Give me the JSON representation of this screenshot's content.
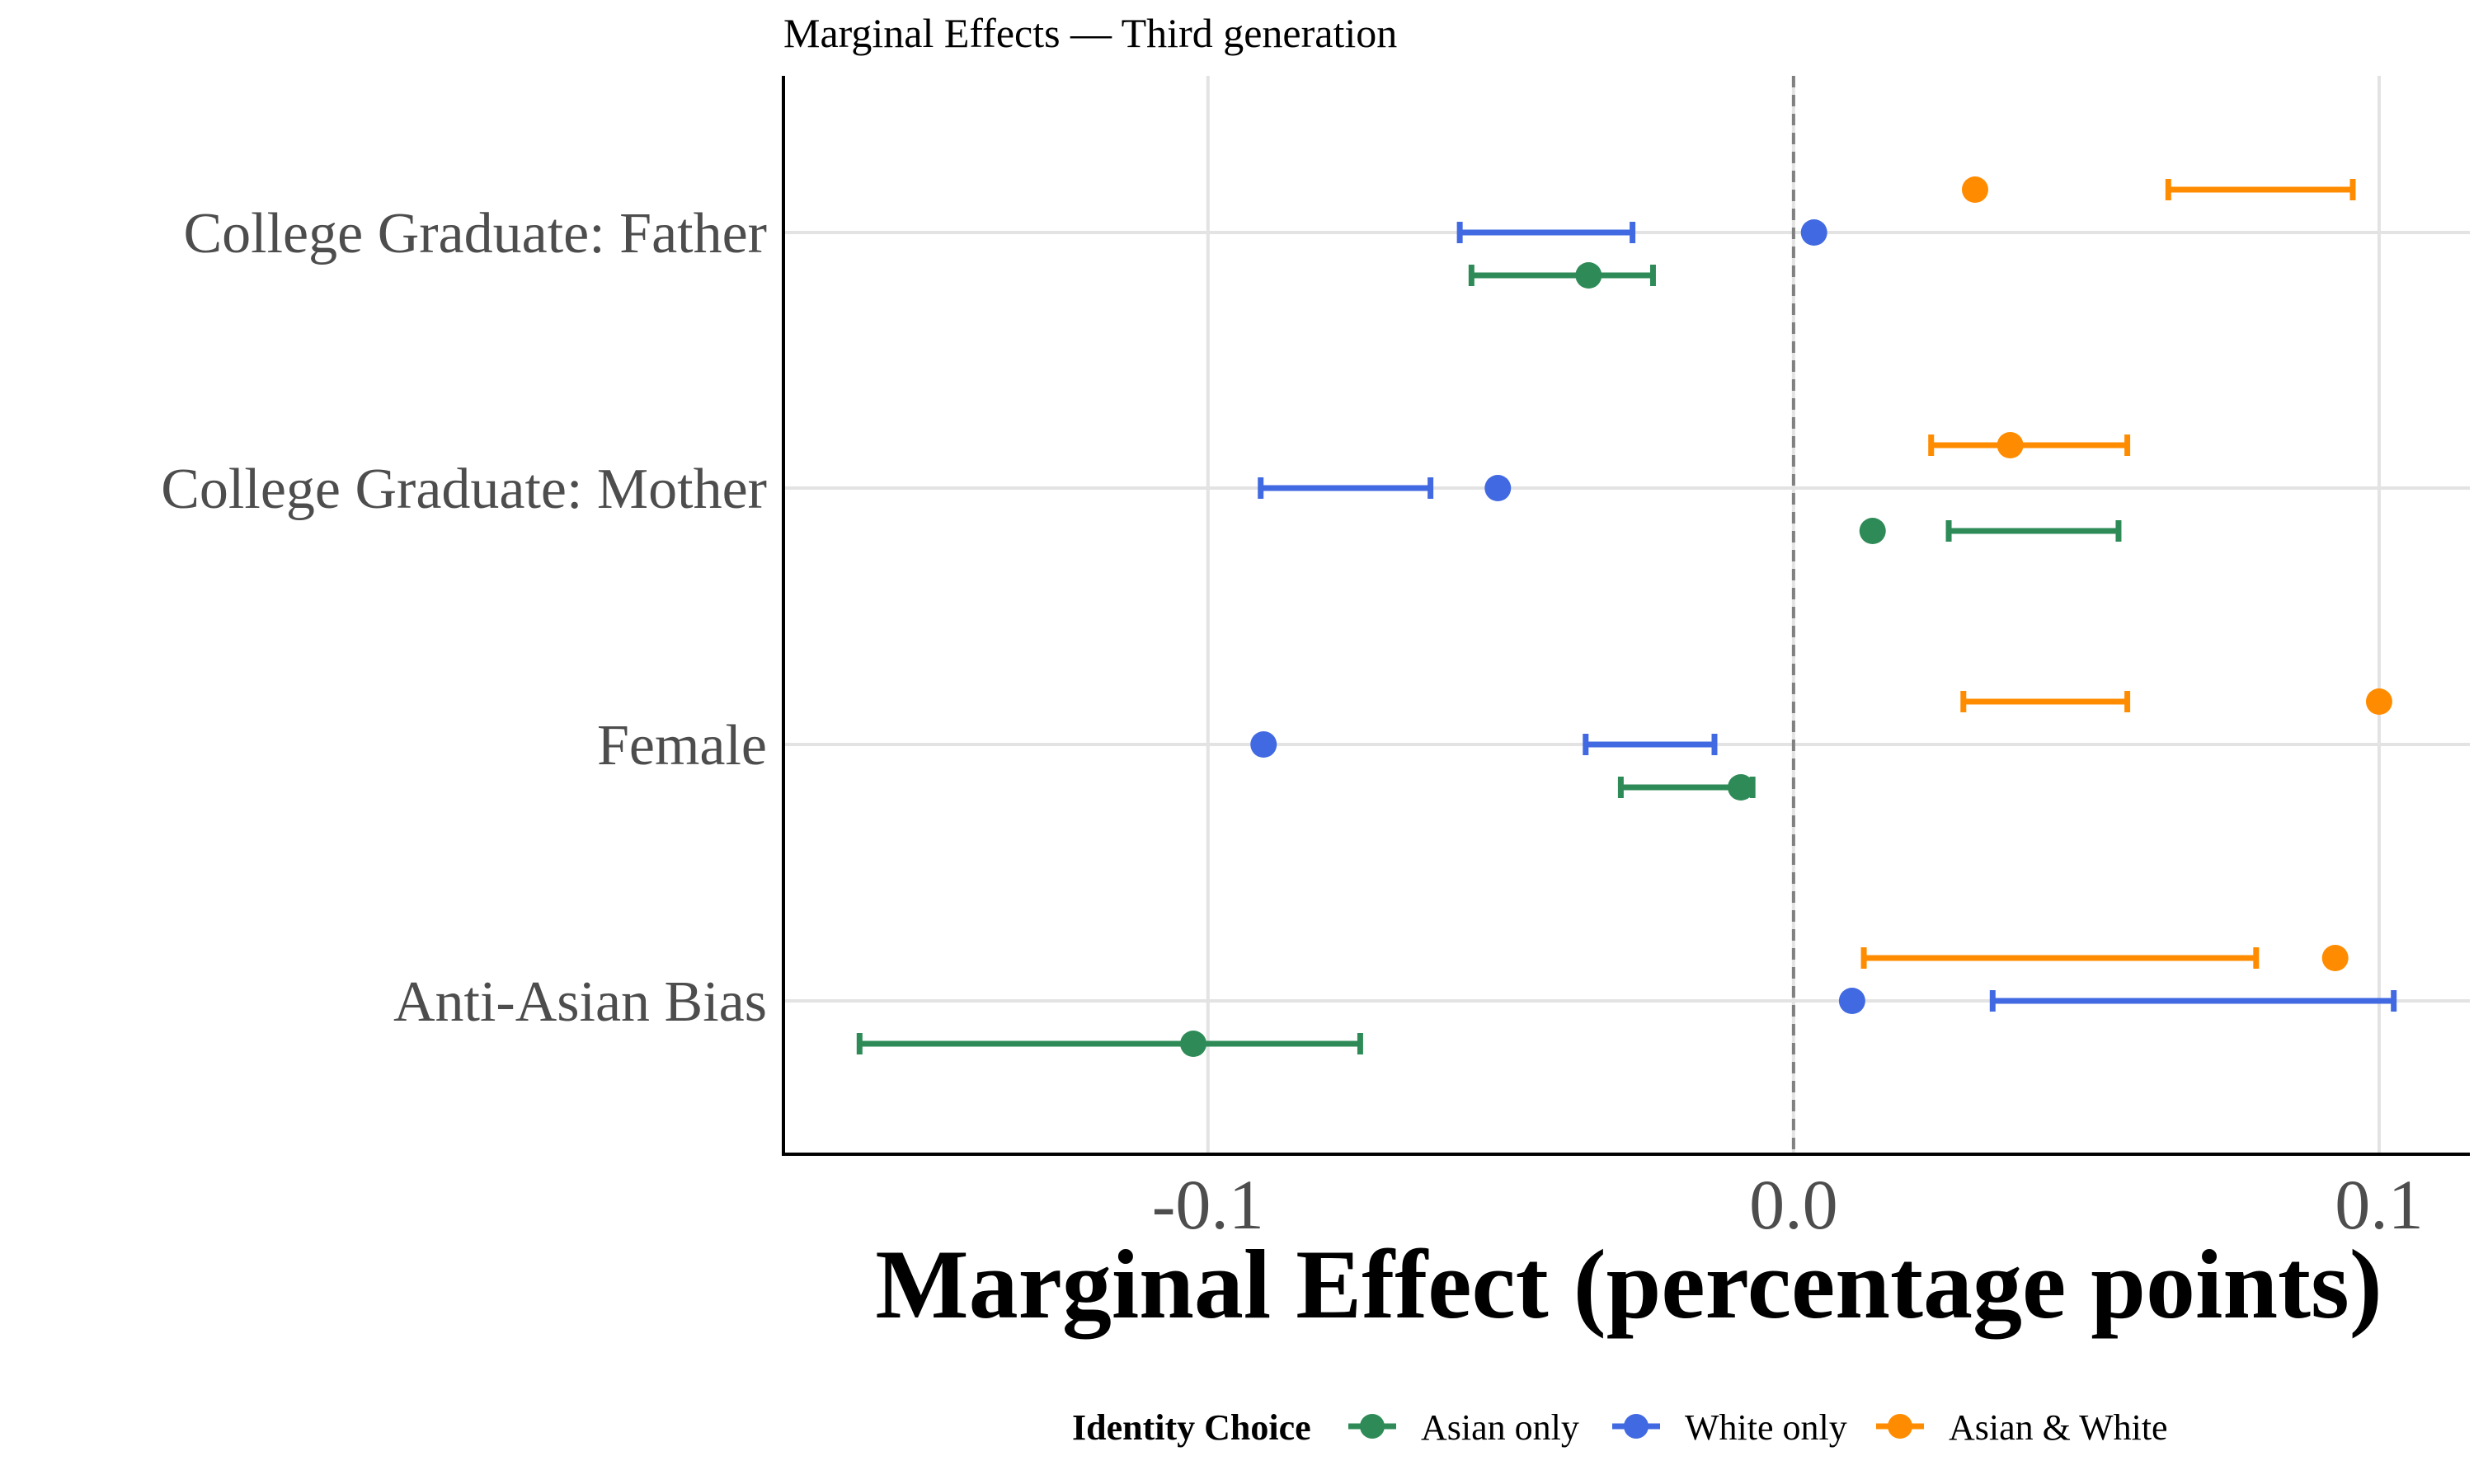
{
  "chart_data": {
    "type": "scatter",
    "title": "Marginal Effects — Third generation",
    "xlabel": "Marginal Effect (percentage points)",
    "ylabel": "",
    "xlim": [
      -0.1725,
      0.1155
    ],
    "xticks": [
      {
        "value": -0.1,
        "label": "-0.1"
      },
      {
        "value": 0.0,
        "label": "0.0"
      },
      {
        "value": 0.1,
        "label": "0.1"
      }
    ],
    "reference_line": {
      "x": 0.0,
      "style": "dashed"
    },
    "categories": [
      "College Graduate: Father",
      "College Graduate: Mother",
      "Female",
      "Anti-Asian Bias"
    ],
    "grid": true,
    "legend": {
      "title": "Identity Choice",
      "placement": "bottom",
      "entries": [
        "Asian only",
        "White only",
        "Asian & White"
      ]
    },
    "series": [
      {
        "name": "Asian only",
        "color": "#2e8b57",
        "points": [
          {
            "category": "College Graduate: Father",
            "estimate": -0.035,
            "ci_low": -0.055,
            "ci_high": -0.024
          },
          {
            "category": "College Graduate: Mother",
            "estimate": 0.0135,
            "ci_low": 0.0265,
            "ci_high": 0.0555
          },
          {
            "category": "Female",
            "estimate": -0.009,
            "ci_low": -0.0295,
            "ci_high": -0.007
          },
          {
            "category": "Anti-Asian Bias",
            "estimate": -0.1025,
            "ci_low": -0.1595,
            "ci_high": -0.074
          }
        ]
      },
      {
        "name": "White only",
        "color": "#4169e1",
        "points": [
          {
            "category": "College Graduate: Father",
            "estimate": 0.0035,
            "ci_low": -0.057,
            "ci_high": -0.0275
          },
          {
            "category": "College Graduate: Mother",
            "estimate": -0.0505,
            "ci_low": -0.091,
            "ci_high": -0.062
          },
          {
            "category": "Female",
            "estimate": -0.0905,
            "ci_low": -0.0355,
            "ci_high": -0.0135
          },
          {
            "category": "Anti-Asian Bias",
            "estimate": 0.01,
            "ci_low": 0.034,
            "ci_high": 0.1025
          }
        ]
      },
      {
        "name": "Asian & White",
        "color": "#ff8c00",
        "points": [
          {
            "category": "College Graduate: Father",
            "estimate": 0.031,
            "ci_low": 0.064,
            "ci_high": 0.0955
          },
          {
            "category": "College Graduate: Mother",
            "estimate": 0.037,
            "ci_low": 0.0235,
            "ci_high": 0.057
          },
          {
            "category": "Female",
            "estimate": 0.1,
            "ci_low": 0.029,
            "ci_high": 0.057
          },
          {
            "category": "Anti-Asian Bias",
            "estimate": 0.0925,
            "ci_low": 0.012,
            "ci_high": 0.079
          }
        ]
      }
    ]
  }
}
